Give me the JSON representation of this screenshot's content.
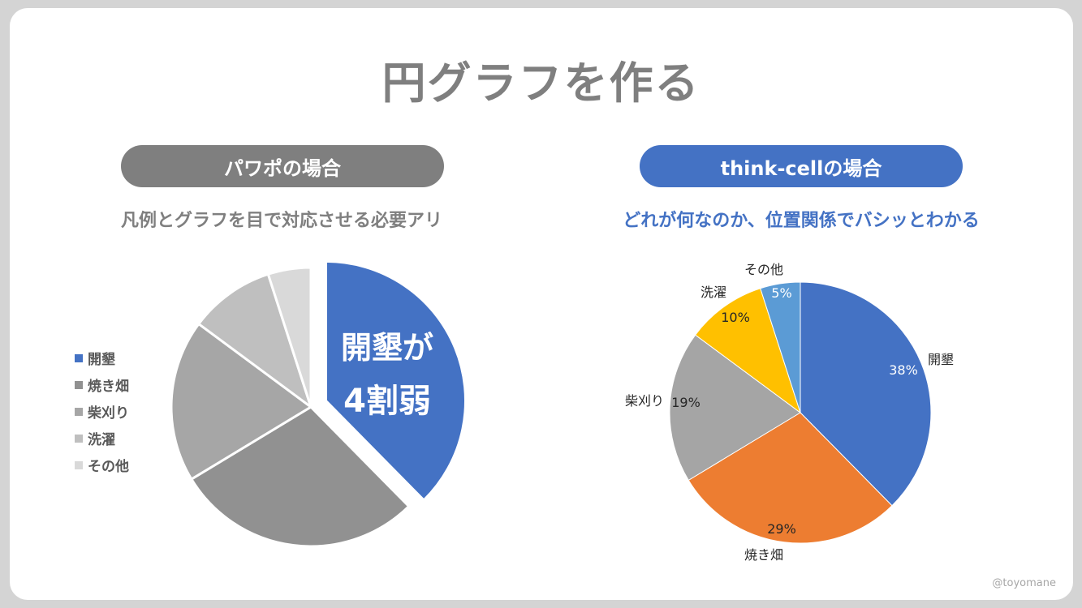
{
  "slide": {
    "title": "円グラフを作る",
    "credit": "@toyomane"
  },
  "left": {
    "heading": "パワポの場合",
    "subtitle": "凡例とグラフを目で対応させる必要アリ",
    "callout_line1": "開墾が",
    "callout_line2": "4割弱"
  },
  "right": {
    "heading": "think-cellの場合",
    "subtitle": "どれが何なのか、位置関係でバシッとわかる"
  },
  "colors": {
    "gray_dark": "#7f7f7f",
    "blue": "#4472c4",
    "orange": "#ed7d31",
    "gray_mid": "#a5a5a5",
    "yellow": "#ffc000",
    "light_blue": "#5b9bd5"
  },
  "chart_data": [
    {
      "type": "pie",
      "title": "",
      "legend": "left",
      "categories": [
        "開墾",
        "焼き畑",
        "柴刈り",
        "洗濯",
        "その他"
      ],
      "values": [
        38,
        29,
        19,
        10,
        5
      ],
      "colors": [
        "#4472c4",
        "#919191",
        "#a6a6a6",
        "#bfbfbf",
        "#d9d9d9"
      ],
      "exploded": [
        "開墾"
      ]
    },
    {
      "type": "pie",
      "title": "",
      "legend": "none",
      "categories": [
        "開墾",
        "焼き畑",
        "柴刈り",
        "洗濯",
        "その他"
      ],
      "values": [
        38,
        29,
        19,
        10,
        5
      ],
      "value_labels": [
        "38%",
        "29%",
        "19%",
        "10%",
        "5%"
      ],
      "colors": [
        "#4472c4",
        "#ed7d31",
        "#a5a5a5",
        "#ffc000",
        "#5b9bd5"
      ]
    }
  ]
}
